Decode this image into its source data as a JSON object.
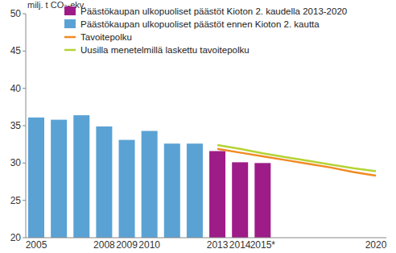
{
  "chart_data": {
    "type": "bar",
    "y_label": "milj. t CO₂-ekv.",
    "categories": [
      "2005",
      null,
      null,
      "2008",
      "2009",
      "2010",
      null,
      null,
      "2013",
      "2014",
      "2015*",
      null,
      null,
      null,
      null,
      "2020"
    ],
    "series": [
      {
        "name": "Päästökaupan ulkopuoliset päästöt Kioton 2. kaudella 2013-2020",
        "type": "bar",
        "color": "#9e1c87",
        "values": [
          null,
          null,
          null,
          null,
          null,
          null,
          null,
          null,
          31.6,
          30.1,
          30.0,
          null,
          null,
          null,
          null,
          null
        ]
      },
      {
        "name": "Päästökaupan ulkopuoliset päästöt ennen Kioton 2. kautta",
        "type": "bar",
        "color": "#5aa2d4",
        "values": [
          36.1,
          35.8,
          36.4,
          34.9,
          33.1,
          34.3,
          32.6,
          32.6,
          null,
          null,
          null,
          null,
          null,
          null,
          null,
          null
        ]
      },
      {
        "name": "Tavoitepolku",
        "type": "line",
        "color": "#f18a23",
        "values": [
          null,
          null,
          null,
          null,
          null,
          null,
          null,
          null,
          31.9,
          31.4,
          30.9,
          30.4,
          29.9,
          29.4,
          28.8,
          28.3
        ]
      },
      {
        "name": "Uusilla menetelmillä laskettu tavoitepolku",
        "type": "line",
        "color": "#b5d334",
        "values": [
          null,
          null,
          null,
          null,
          null,
          null,
          null,
          null,
          32.4,
          31.9,
          31.3,
          30.8,
          30.3,
          29.8,
          29.3,
          28.9
        ]
      }
    ],
    "ylim": [
      20,
      50
    ],
    "yticks": [
      20,
      25,
      30,
      35,
      40,
      45,
      50
    ],
    "grid": false,
    "legend": "upper left"
  }
}
